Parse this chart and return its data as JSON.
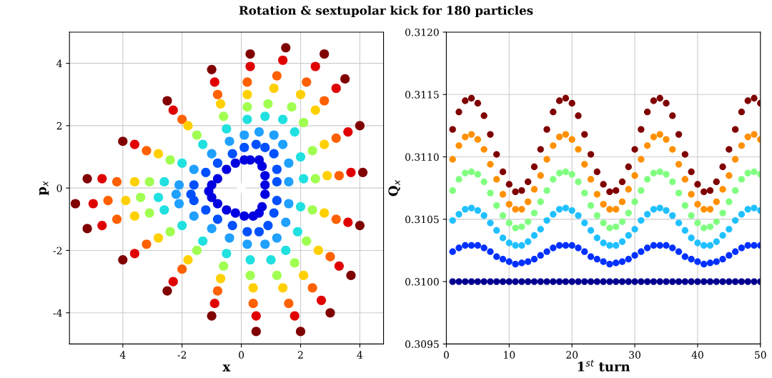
{
  "chart_data": [
    {
      "type": "scatter",
      "title": "Rotation & sextupolar kick for 180 particles",
      "xlabel": "x",
      "ylabel": "p$_{x}$",
      "xlim": [
        -5.8,
        4.8
      ],
      "ylim": [
        -5,
        5
      ],
      "xticks": [
        {
          "value": -4,
          "label": "4"
        },
        -2,
        0,
        2,
        4
      ],
      "yticks": [
        -4,
        -2,
        0,
        2,
        4
      ],
      "grid": true,
      "marker": "circle",
      "series": [
        {
          "color": "#800000",
          "x": [
            4.1,
            4.0,
            3.5,
            2.8,
            1.5,
            0.3,
            -1.0,
            -2.5,
            -4.0,
            -5.2,
            -5.6,
            -5.2,
            -4.0,
            -2.5,
            -1.0,
            0.5,
            2.0,
            3.0,
            3.7,
            4.0
          ],
          "values": [
            0.5,
            2.0,
            3.5,
            4.3,
            4.5,
            4.3,
            3.8,
            2.8,
            1.5,
            0.3,
            -0.5,
            -1.3,
            -2.3,
            -3.3,
            -4.1,
            -4.6,
            -4.6,
            -4.0,
            -2.8,
            -1.2
          ]
        },
        {
          "color": "#e00000",
          "x": [
            3.7,
            3.6,
            3.2,
            2.5,
            1.4,
            0.3,
            -0.9,
            -2.3,
            -3.6,
            -4.7,
            -5.0,
            -4.7,
            -3.6,
            -2.3,
            -0.9,
            0.5,
            1.8,
            2.7,
            3.3,
            3.6
          ],
          "values": [
            0.5,
            1.8,
            3.2,
            3.9,
            4.1,
            3.9,
            3.4,
            2.5,
            1.4,
            0.3,
            -0.5,
            -1.2,
            -2.1,
            -3.0,
            -3.7,
            -4.1,
            -4.1,
            -3.6,
            -2.5,
            -1.1
          ]
        },
        {
          "color": "#ff6000",
          "x": [
            3.3,
            3.2,
            2.8,
            2.2,
            1.2,
            0.2,
            -0.8,
            -2.0,
            -3.2,
            -4.2,
            -4.5,
            -4.2,
            -3.2,
            -2.0,
            -0.8,
            0.4,
            1.6,
            2.4,
            3.0,
            3.2
          ],
          "values": [
            0.4,
            1.6,
            2.8,
            3.4,
            3.6,
            3.4,
            3.0,
            2.2,
            1.2,
            0.2,
            -0.4,
            -1.0,
            -1.8,
            -2.6,
            -3.3,
            -3.7,
            -3.7,
            -3.2,
            -2.2,
            -1.0
          ]
        },
        {
          "color": "#ffd000",
          "x": [
            2.9,
            2.8,
            2.5,
            2.0,
            1.1,
            0.2,
            -0.7,
            -1.8,
            -2.8,
            -3.6,
            -3.9,
            -3.6,
            -2.8,
            -1.8,
            -0.7,
            0.4,
            1.4,
            2.1,
            2.6,
            2.8
          ],
          "values": [
            0.4,
            1.4,
            2.5,
            3.0,
            3.2,
            3.0,
            2.7,
            2.0,
            1.1,
            0.2,
            -0.4,
            -0.9,
            -1.6,
            -2.3,
            -2.9,
            -3.2,
            -3.2,
            -2.8,
            -2.0,
            -0.8
          ]
        },
        {
          "color": "#a0ff50",
          "x": [
            2.5,
            2.4,
            2.1,
            1.7,
            0.9,
            0.2,
            -0.6,
            -1.5,
            -2.4,
            -3.1,
            -3.4,
            -3.1,
            -2.4,
            -1.5,
            -0.6,
            0.3,
            1.2,
            1.8,
            2.2,
            2.4
          ],
          "values": [
            0.3,
            1.2,
            2.1,
            2.6,
            2.7,
            2.6,
            2.3,
            1.7,
            0.9,
            0.2,
            -0.3,
            -0.8,
            -1.4,
            -2.0,
            -2.5,
            -2.8,
            -2.8,
            -2.4,
            -1.7,
            -0.7
          ]
        },
        {
          "color": "#20e0e0",
          "x": [
            2.1,
            2.0,
            1.8,
            1.4,
            0.8,
            0.2,
            -0.5,
            -1.3,
            -2.0,
            -2.6,
            -2.8,
            -2.6,
            -2.0,
            -1.3,
            -0.5,
            0.3,
            1.0,
            1.5,
            1.9,
            2.0
          ],
          "values": [
            0.3,
            1.0,
            1.8,
            2.2,
            2.3,
            2.2,
            1.9,
            1.4,
            0.8,
            0.2,
            -0.3,
            -0.7,
            -1.2,
            -1.7,
            -2.1,
            -2.3,
            -2.3,
            -2.0,
            -1.4,
            -0.6
          ]
        },
        {
          "color": "#20a0ff",
          "x": [
            1.6,
            1.6,
            1.4,
            1.1,
            0.6,
            0.1,
            -0.4,
            -1.0,
            -1.6,
            -2.1,
            -2.2,
            -2.1,
            -1.6,
            -1.0,
            -0.4,
            0.2,
            0.8,
            1.2,
            1.5,
            1.6
          ],
          "values": [
            0.2,
            0.8,
            1.4,
            1.7,
            1.8,
            1.7,
            1.5,
            1.1,
            0.6,
            0.1,
            -0.2,
            -0.5,
            -0.9,
            -1.3,
            -1.6,
            -1.8,
            -1.8,
            -1.6,
            -1.1,
            -0.5
          ]
        },
        {
          "color": "#0050ff",
          "x": [
            1.2,
            1.2,
            1.1,
            0.8,
            0.5,
            0.1,
            -0.3,
            -0.8,
            -1.2,
            -1.6,
            -1.7,
            -1.6,
            -1.2,
            -0.8,
            -0.3,
            0.2,
            0.6,
            0.9,
            1.1,
            1.2
          ],
          "values": [
            0.2,
            0.6,
            1.1,
            1.3,
            1.4,
            1.3,
            1.1,
            0.8,
            0.5,
            0.1,
            -0.2,
            -0.4,
            -0.7,
            -1.0,
            -1.2,
            -1.4,
            -1.4,
            -1.2,
            -0.8,
            -0.4
          ]
        },
        {
          "color": "#0000e0",
          "x": [
            0.8,
            0.8,
            0.7,
            0.6,
            0.3,
            0.1,
            -0.2,
            -0.5,
            -0.8,
            -1.0,
            -1.1,
            -1.0,
            -0.8,
            -0.5,
            -0.2,
            0.1,
            0.4,
            0.6,
            0.7,
            0.8
          ],
          "values": [
            0.1,
            0.4,
            0.7,
            0.9,
            0.9,
            0.9,
            0.8,
            0.6,
            0.3,
            0.1,
            -0.1,
            -0.3,
            -0.5,
            -0.7,
            -0.8,
            -0.9,
            -0.9,
            -0.8,
            -0.6,
            -0.2
          ]
        },
        {
          "color": "#ffffff",
          "x": [
            0
          ],
          "values": [
            0
          ]
        }
      ]
    },
    {
      "type": "scatter",
      "xlabel": "1$^{st}$ turn",
      "ylabel": "Q$_{x}$",
      "xlim": [
        0,
        50
      ],
      "ylim": [
        0.3095,
        0.312
      ],
      "xticks": [
        0,
        10,
        20,
        30,
        40,
        50
      ],
      "yticks": [
        {
          "value": 0.3095,
          "label": "0.3095"
        },
        {
          "value": 0.31,
          "label": "0.3100"
        },
        {
          "value": 0.3105,
          "label": "0.3105"
        },
        {
          "value": 0.311,
          "label": "0.3110"
        },
        {
          "value": 0.3115,
          "label": "0.3115"
        },
        {
          "value": 0.312,
          "label": "0.3120"
        }
      ],
      "grid": true,
      "marker": "circle",
      "x": [
        1,
        2,
        3,
        4,
        5,
        6,
        7,
        8,
        9,
        10,
        11,
        12,
        13,
        14,
        15,
        16,
        17,
        18,
        19,
        20,
        21,
        22,
        23,
        24,
        25,
        26,
        27,
        28,
        29,
        30,
        31,
        32,
        33,
        34,
        35,
        36,
        37,
        38,
        39,
        40,
        41,
        42,
        43,
        44,
        45,
        46,
        47,
        48,
        49,
        50
      ],
      "series": [
        {
          "color": "#00008f",
          "values": [
            0.31,
            0.31,
            0.31,
            0.31,
            0.31,
            0.31,
            0.31,
            0.31,
            0.31,
            0.31,
            0.31,
            0.31,
            0.31,
            0.31,
            0.31,
            0.31,
            0.31,
            0.31,
            0.31,
            0.31,
            0.31,
            0.31,
            0.31,
            0.31,
            0.31,
            0.31,
            0.31,
            0.31,
            0.31,
            0.31,
            0.31,
            0.31,
            0.31,
            0.31,
            0.31,
            0.31,
            0.31,
            0.31,
            0.31,
            0.31,
            0.31,
            0.31,
            0.31,
            0.31,
            0.31,
            0.31,
            0.31,
            0.31,
            0.31,
            0.31
          ]
        },
        {
          "color": "#0030ff",
          "values": [
            0.31024,
            0.31027,
            0.31029,
            0.31029,
            0.31029,
            0.31027,
            0.31024,
            0.3102,
            0.31018,
            0.31016,
            0.31014,
            0.31015,
            0.31016,
            0.31018,
            0.31021,
            0.31024,
            0.31027,
            0.31029,
            0.31029,
            0.31029,
            0.31027,
            0.31024,
            0.3102,
            0.31018,
            0.31016,
            0.31014,
            0.31015,
            0.31016,
            0.31018,
            0.31021,
            0.31024,
            0.31027,
            0.31029,
            0.31029,
            0.31029,
            0.31027,
            0.31024,
            0.3102,
            0.31018,
            0.31016,
            0.31014,
            0.31015,
            0.31016,
            0.31018,
            0.31021,
            0.31024,
            0.31027,
            0.31029,
            0.31029,
            0.31029
          ]
        },
        {
          "color": "#20c0ff",
          "values": [
            0.31049,
            0.31054,
            0.31058,
            0.31059,
            0.31057,
            0.31053,
            0.31047,
            0.31041,
            0.31035,
            0.31031,
            0.31029,
            0.31029,
            0.31032,
            0.31037,
            0.31042,
            0.31049,
            0.31054,
            0.31058,
            0.31059,
            0.31057,
            0.31053,
            0.31047,
            0.31041,
            0.31035,
            0.31031,
            0.31029,
            0.31029,
            0.31032,
            0.31037,
            0.31042,
            0.31049,
            0.31054,
            0.31058,
            0.31059,
            0.31057,
            0.31053,
            0.31047,
            0.31041,
            0.31035,
            0.31031,
            0.31029,
            0.31029,
            0.31032,
            0.31037,
            0.31042,
            0.31049,
            0.31054,
            0.31058,
            0.31059,
            0.31057
          ]
        },
        {
          "color": "#80ff80",
          "values": [
            0.31073,
            0.31082,
            0.31087,
            0.31088,
            0.31086,
            0.3108,
            0.31071,
            0.31061,
            0.31053,
            0.31047,
            0.31043,
            0.31044,
            0.31048,
            0.31055,
            0.31064,
            0.31073,
            0.31082,
            0.31087,
            0.31088,
            0.31086,
            0.3108,
            0.31071,
            0.31061,
            0.31053,
            0.31047,
            0.31043,
            0.31044,
            0.31048,
            0.31055,
            0.31064,
            0.31073,
            0.31082,
            0.31087,
            0.31088,
            0.31086,
            0.3108,
            0.31071,
            0.31061,
            0.31053,
            0.31047,
            0.31043,
            0.31044,
            0.31048,
            0.31055,
            0.31064,
            0.31073,
            0.31082,
            0.31087,
            0.31088,
            0.31086
          ]
        },
        {
          "color": "#ff9000",
          "values": [
            0.31098,
            0.31109,
            0.31116,
            0.31118,
            0.31114,
            0.31106,
            0.31094,
            0.31082,
            0.3107,
            0.31062,
            0.31058,
            0.31058,
            0.31064,
            0.31074,
            0.31085,
            0.31098,
            0.31109,
            0.31116,
            0.31118,
            0.31114,
            0.31106,
            0.31094,
            0.31082,
            0.3107,
            0.31062,
            0.31058,
            0.31058,
            0.31064,
            0.31074,
            0.31085,
            0.31098,
            0.31109,
            0.31116,
            0.31118,
            0.31114,
            0.31106,
            0.31094,
            0.31082,
            0.3107,
            0.31062,
            0.31058,
            0.31058,
            0.31064,
            0.31074,
            0.31085,
            0.31098,
            0.31109,
            0.31116,
            0.31118,
            0.31114
          ]
        },
        {
          "color": "#800000",
          "values": [
            0.31122,
            0.31136,
            0.31145,
            0.31147,
            0.31143,
            0.31133,
            0.31118,
            0.31102,
            0.31088,
            0.31078,
            0.31072,
            0.31073,
            0.3108,
            0.31092,
            0.31106,
            0.31122,
            0.31136,
            0.31145,
            0.31147,
            0.31143,
            0.31133,
            0.31118,
            0.31102,
            0.31088,
            0.31078,
            0.31072,
            0.31073,
            0.3108,
            0.31092,
            0.31106,
            0.31122,
            0.31136,
            0.31145,
            0.31147,
            0.31143,
            0.31133,
            0.31118,
            0.31102,
            0.31088,
            0.31078,
            0.31072,
            0.31073,
            0.3108,
            0.31092,
            0.31106,
            0.31122,
            0.31136,
            0.31145,
            0.31147,
            0.31143
          ]
        }
      ]
    }
  ]
}
